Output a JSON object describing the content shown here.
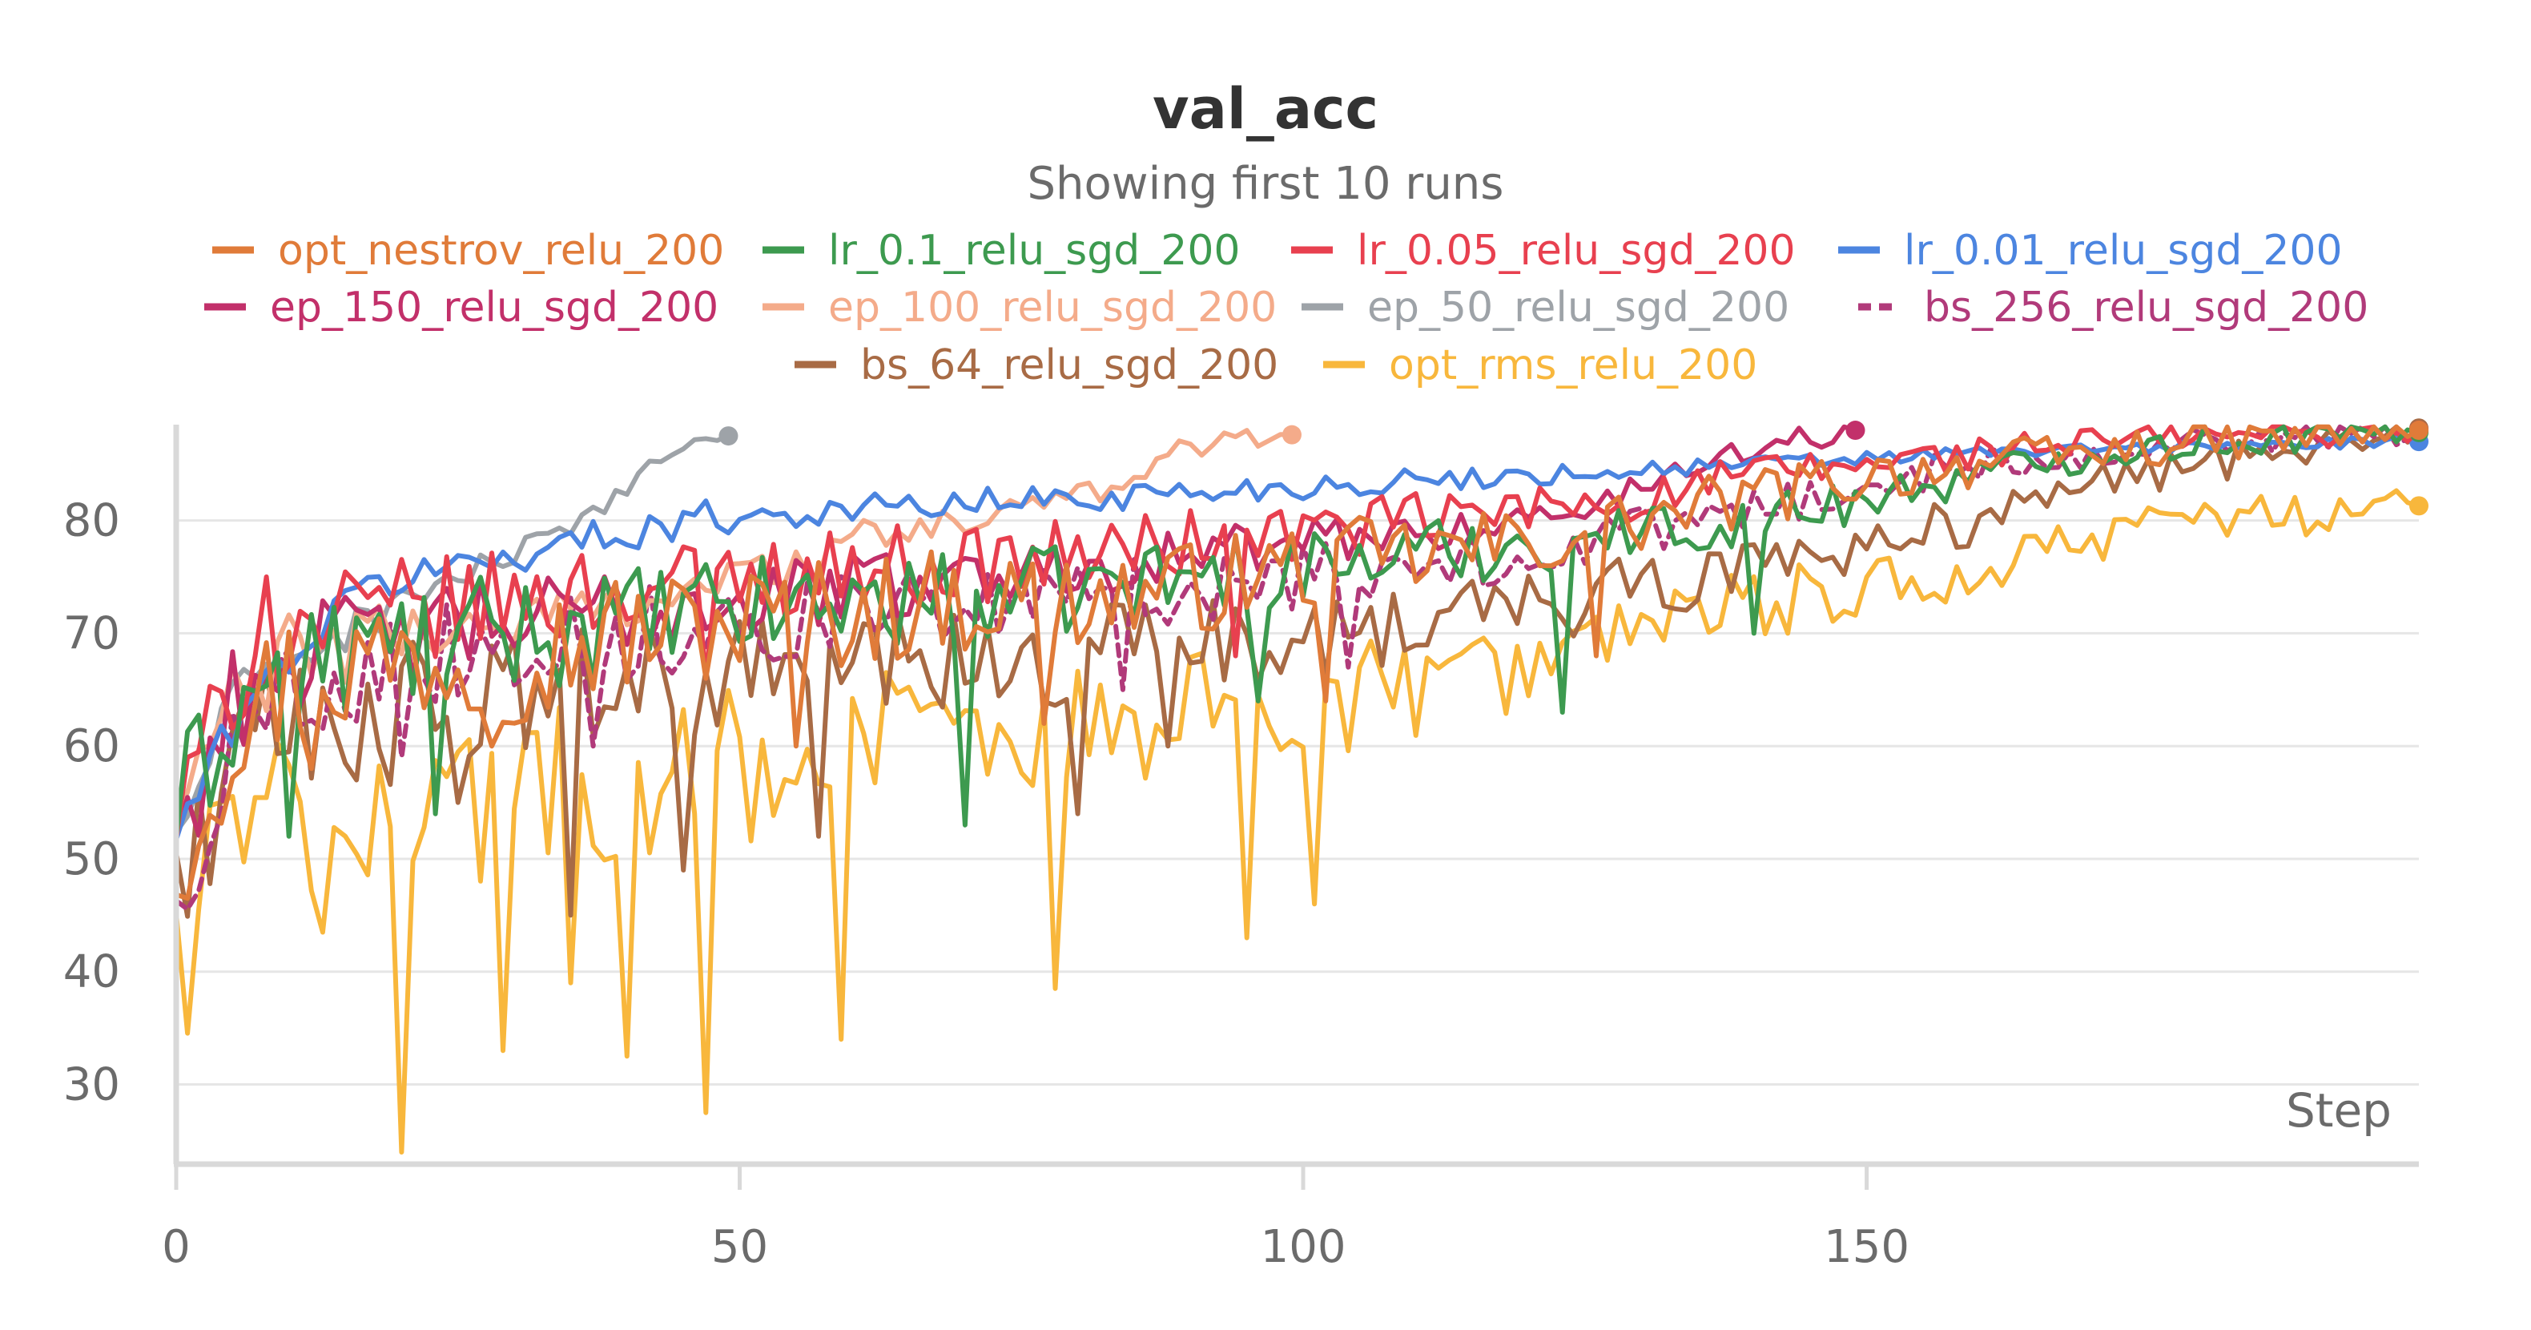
{
  "chart_data": {
    "type": "line",
    "title": "val_acc",
    "subtitle": "Showing first 10 runs",
    "xlabel": "Step",
    "ylabel": "",
    "xlim": [
      0,
      199
    ],
    "ylim": [
      23.5,
      88.5
    ],
    "x_ticks": [
      0,
      50,
      100,
      150
    ],
    "y_ticks": [
      30,
      40,
      50,
      60,
      70,
      80
    ],
    "grid": true,
    "legend_position": "top",
    "series": [
      {
        "name": "opt_nestrov_relu_200",
        "color": "#e07b39",
        "dashed": false,
        "keypoints": [
          [
            0,
            50
          ],
          [
            5,
            62
          ],
          [
            10,
            66
          ],
          [
            20,
            68
          ],
          [
            30,
            68
          ],
          [
            40,
            70
          ],
          [
            50,
            71
          ],
          [
            60,
            72
          ],
          [
            70,
            73
          ],
          [
            80,
            73
          ],
          [
            90,
            74
          ],
          [
            100,
            76
          ],
          [
            110,
            77
          ],
          [
            120,
            78
          ],
          [
            130,
            80
          ],
          [
            140,
            82
          ],
          [
            150,
            84
          ],
          [
            160,
            85
          ],
          [
            170,
            86
          ],
          [
            180,
            87
          ],
          [
            190,
            87.5
          ],
          [
            199,
            88
          ]
        ],
        "noise": 7,
        "spikes": [
          [
            12,
            58
          ],
          [
            28,
            60
          ],
          [
            55,
            60
          ],
          [
            77,
            62
          ],
          [
            102,
            64
          ],
          [
            126,
            68
          ]
        ],
        "end_marker": true,
        "end_value": 88
      },
      {
        "name": "lr_0.1_relu_sgd_200",
        "color": "#3d9a4f",
        "dashed": false,
        "keypoints": [
          [
            0,
            54
          ],
          [
            5,
            63
          ],
          [
            10,
            67
          ],
          [
            20,
            69
          ],
          [
            30,
            70
          ],
          [
            40,
            71
          ],
          [
            50,
            72
          ],
          [
            60,
            73
          ],
          [
            70,
            73
          ],
          [
            80,
            74
          ],
          [
            90,
            75
          ],
          [
            100,
            76
          ],
          [
            110,
            77
          ],
          [
            120,
            78
          ],
          [
            130,
            79
          ],
          [
            140,
            80
          ],
          [
            150,
            82
          ],
          [
            160,
            84
          ],
          [
            170,
            86
          ],
          [
            180,
            87
          ],
          [
            190,
            87.5
          ],
          [
            199,
            87.8
          ]
        ],
        "noise": 6,
        "spikes": [
          [
            10,
            52
          ],
          [
            23,
            54
          ],
          [
            70,
            53
          ],
          [
            96,
            64
          ],
          [
            123,
            63
          ],
          [
            140,
            70
          ]
        ],
        "end_marker": true,
        "end_value": 87.8
      },
      {
        "name": "lr_0.05_relu_sgd_200",
        "color": "#e8404f",
        "dashed": false,
        "keypoints": [
          [
            0,
            53
          ],
          [
            5,
            66
          ],
          [
            10,
            70
          ],
          [
            20,
            72
          ],
          [
            30,
            73
          ],
          [
            40,
            74
          ],
          [
            50,
            75
          ],
          [
            60,
            76
          ],
          [
            70,
            76
          ],
          [
            80,
            77
          ],
          [
            90,
            78
          ],
          [
            100,
            79
          ],
          [
            110,
            80
          ],
          [
            120,
            81
          ],
          [
            130,
            82
          ],
          [
            140,
            84
          ],
          [
            150,
            85
          ],
          [
            160,
            86
          ],
          [
            170,
            87
          ],
          [
            180,
            87.5
          ],
          [
            190,
            87.8
          ],
          [
            199,
            88
          ]
        ],
        "noise": 5,
        "spikes": [
          [
            8,
            75
          ],
          [
            47,
            66
          ],
          [
            94,
            68
          ]
        ],
        "end_marker": true,
        "end_value": 88
      },
      {
        "name": "lr_0.01_relu_sgd_200",
        "color": "#4c85e0",
        "dashed": false,
        "keypoints": [
          [
            0,
            52
          ],
          [
            5,
            62
          ],
          [
            10,
            68
          ],
          [
            17,
            74
          ],
          [
            20,
            75
          ],
          [
            30,
            77
          ],
          [
            40,
            79
          ],
          [
            45,
            80
          ],
          [
            50,
            80.5
          ],
          [
            60,
            81
          ],
          [
            70,
            81.5
          ],
          [
            80,
            82
          ],
          [
            90,
            82.5
          ],
          [
            100,
            83
          ],
          [
            110,
            83.5
          ],
          [
            120,
            84
          ],
          [
            130,
            84.5
          ],
          [
            140,
            85
          ],
          [
            150,
            85.5
          ],
          [
            160,
            86
          ],
          [
            170,
            86.3
          ],
          [
            180,
            86.6
          ],
          [
            190,
            86.8
          ],
          [
            199,
            87
          ]
        ],
        "noise": 2,
        "spikes": [],
        "end_marker": true,
        "end_value": 87
      },
      {
        "name": "ep_150_relu_sgd_200",
        "color": "#c2306a",
        "dashed": false,
        "keypoints": [
          [
            0,
            52
          ],
          [
            5,
            64
          ],
          [
            10,
            68
          ],
          [
            20,
            70
          ],
          [
            30,
            71
          ],
          [
            40,
            72
          ],
          [
            50,
            73
          ],
          [
            60,
            74
          ],
          [
            70,
            75
          ],
          [
            80,
            76
          ],
          [
            90,
            77
          ],
          [
            100,
            78
          ],
          [
            110,
            79
          ],
          [
            120,
            80
          ],
          [
            125,
            81
          ],
          [
            130,
            83
          ],
          [
            135,
            85
          ],
          [
            140,
            86.5
          ],
          [
            145,
            87.5
          ],
          [
            149,
            88
          ]
        ],
        "noise": 5,
        "spikes": [],
        "end_marker": true,
        "end_value": 88
      },
      {
        "name": "ep_100_relu_sgd_200",
        "color": "#f4ab8a",
        "dashed": false,
        "keypoints": [
          [
            0,
            54
          ],
          [
            5,
            64
          ],
          [
            10,
            68
          ],
          [
            20,
            70
          ],
          [
            30,
            71
          ],
          [
            40,
            73
          ],
          [
            50,
            75
          ],
          [
            55,
            76
          ],
          [
            60,
            78
          ],
          [
            70,
            80
          ],
          [
            75,
            81
          ],
          [
            80,
            82
          ],
          [
            85,
            84
          ],
          [
            88,
            86
          ],
          [
            92,
            87
          ],
          [
            96,
            87.5
          ],
          [
            99,
            87.6
          ]
        ],
        "noise": 4,
        "spikes": [],
        "end_marker": true,
        "end_value": 87.6
      },
      {
        "name": "ep_50_relu_sgd_200",
        "color": "#9ea3a8",
        "dashed": false,
        "keypoints": [
          [
            0,
            52
          ],
          [
            5,
            64
          ],
          [
            10,
            68
          ],
          [
            15,
            70
          ],
          [
            20,
            73
          ],
          [
            25,
            75
          ],
          [
            30,
            77
          ],
          [
            35,
            79
          ],
          [
            38,
            81
          ],
          [
            40,
            83
          ],
          [
            42,
            85
          ],
          [
            44,
            86
          ],
          [
            46,
            87
          ],
          [
            49,
            87.5
          ]
        ],
        "noise": 2.5,
        "spikes": [],
        "end_marker": true,
        "end_value": 87.5
      },
      {
        "name": "bs_256_relu_sgd_200",
        "color": "#b13a7a",
        "dashed": true,
        "keypoints": [
          [
            0,
            45
          ],
          [
            5,
            60
          ],
          [
            10,
            65
          ],
          [
            20,
            68
          ],
          [
            30,
            69
          ],
          [
            40,
            70
          ],
          [
            50,
            71
          ],
          [
            60,
            72
          ],
          [
            70,
            72
          ],
          [
            80,
            73
          ],
          [
            90,
            74
          ],
          [
            100,
            75
          ],
          [
            110,
            76
          ],
          [
            120,
            77
          ],
          [
            130,
            79
          ],
          [
            140,
            81
          ],
          [
            150,
            83
          ],
          [
            160,
            85
          ],
          [
            170,
            86
          ],
          [
            180,
            87
          ],
          [
            190,
            87.5
          ],
          [
            199,
            88
          ]
        ],
        "noise": 5,
        "spikes": [
          [
            20,
            59
          ],
          [
            37,
            60
          ],
          [
            84,
            65
          ],
          [
            104,
            67
          ]
        ],
        "end_marker": true,
        "end_value": 88
      },
      {
        "name": "bs_64_relu_sgd_200",
        "color": "#a86b45",
        "dashed": false,
        "keypoints": [
          [
            0,
            48
          ],
          [
            5,
            58
          ],
          [
            10,
            62
          ],
          [
            20,
            63
          ],
          [
            30,
            64
          ],
          [
            40,
            65
          ],
          [
            50,
            66
          ],
          [
            60,
            67
          ],
          [
            70,
            67
          ],
          [
            80,
            68
          ],
          [
            90,
            69
          ],
          [
            100,
            70
          ],
          [
            110,
            71
          ],
          [
            120,
            72
          ],
          [
            130,
            74
          ],
          [
            140,
            76
          ],
          [
            150,
            78
          ],
          [
            160,
            80
          ],
          [
            170,
            83
          ],
          [
            180,
            85
          ],
          [
            190,
            87
          ],
          [
            199,
            88
          ]
        ],
        "noise": 7,
        "spikes": [
          [
            25,
            55
          ],
          [
            35,
            45
          ],
          [
            45,
            49
          ],
          [
            57,
            52
          ],
          [
            80,
            54
          ],
          [
            88,
            60
          ]
        ],
        "end_marker": true,
        "end_value": 88.2
      },
      {
        "name": "opt_rms_relu_200",
        "color": "#f8b73c",
        "dashed": false,
        "keypoints": [
          [
            0,
            41
          ],
          [
            5,
            52
          ],
          [
            10,
            54
          ],
          [
            20,
            55
          ],
          [
            30,
            56
          ],
          [
            40,
            57
          ],
          [
            50,
            58
          ],
          [
            60,
            60
          ],
          [
            70,
            61
          ],
          [
            80,
            62
          ],
          [
            90,
            63
          ],
          [
            100,
            64
          ],
          [
            110,
            65
          ],
          [
            120,
            67
          ],
          [
            130,
            70
          ],
          [
            140,
            72
          ],
          [
            150,
            74
          ],
          [
            160,
            76
          ],
          [
            170,
            78
          ],
          [
            180,
            80
          ],
          [
            190,
            81
          ],
          [
            199,
            81.5
          ]
        ],
        "noise": 9,
        "spikes": [
          [
            13,
            43.5
          ],
          [
            20,
            24
          ],
          [
            29,
            33
          ],
          [
            35,
            39
          ],
          [
            40,
            32.5
          ],
          [
            47,
            27.5
          ],
          [
            59,
            34
          ],
          [
            78,
            38.5
          ],
          [
            95,
            43
          ],
          [
            101,
            46
          ]
        ],
        "end_marker": true,
        "end_value": 81.3
      }
    ]
  }
}
